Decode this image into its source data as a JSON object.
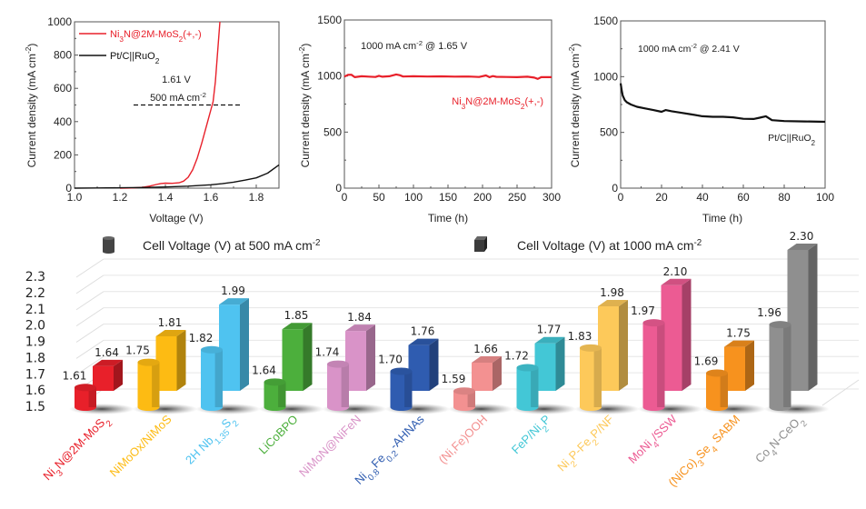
{
  "chart_data": [
    {
      "id": "polarization",
      "type": "line",
      "title": "",
      "xlabel": "Voltage (V)",
      "ylabel": "Current density (mA cm-2)",
      "xlim": [
        1.0,
        1.9
      ],
      "ylim": [
        0,
        1000
      ],
      "xticks": [
        1.0,
        1.2,
        1.4,
        1.6,
        1.8
      ],
      "xtick_labels": [
        "1.0",
        "1.2",
        "1.4",
        "1.6",
        "1.8"
      ],
      "yticks": [
        0,
        200,
        400,
        600,
        800,
        1000
      ],
      "ytick_labels": [
        "0",
        "200",
        "400",
        "600",
        "800",
        "1000"
      ],
      "legend_position": "top-left",
      "series": [
        {
          "name": "Ni3N@2M-MoS2(+,-)",
          "color": "#e8202a",
          "x": [
            1.2,
            1.25,
            1.3,
            1.33,
            1.36,
            1.38,
            1.4,
            1.43,
            1.46,
            1.48,
            1.5,
            1.52,
            1.54,
            1.56,
            1.58,
            1.6,
            1.61,
            1.62,
            1.63,
            1.64
          ],
          "y": [
            0,
            1,
            5,
            12,
            22,
            28,
            30,
            29,
            32,
            42,
            65,
            110,
            180,
            270,
            370,
            470,
            520,
            640,
            820,
            1000
          ]
        },
        {
          "name": "Pt/C||RuO2",
          "color": "#111111",
          "x": [
            1.0,
            1.1,
            1.2,
            1.3,
            1.4,
            1.5,
            1.6,
            1.65,
            1.7,
            1.75,
            1.8,
            1.85,
            1.9
          ],
          "y": [
            0,
            1,
            2,
            4,
            7,
            12,
            20,
            27,
            36,
            48,
            62,
            90,
            140
          ]
        }
      ],
      "annotations": {
        "voltage_label": "1.61 V",
        "current_label": "500 mA cm-2",
        "reference_line_y": 500,
        "reference_line_x_range": [
          1.26,
          1.73
        ]
      }
    },
    {
      "id": "stability-ni3n",
      "type": "line",
      "xlabel": "Time (h)",
      "ylabel": "Current density (mA cm-2)",
      "xlim": [
        0,
        300
      ],
      "ylim": [
        0,
        1500
      ],
      "xticks": [
        0,
        50,
        100,
        150,
        200,
        250,
        300
      ],
      "xtick_labels": [
        "0",
        "50",
        "100",
        "150",
        "200",
        "250",
        "300"
      ],
      "yticks": [
        0,
        500,
        1000,
        1500
      ],
      "ytick_labels": [
        "0",
        "500",
        "1000",
        "1500"
      ],
      "annotation": "1000 mA cm-2 @ 1.65 V",
      "series": [
        {
          "name": "Ni3N@2M-MoS2(+,-)",
          "color": "#e8202a",
          "x": [
            0,
            5,
            10,
            15,
            25,
            35,
            45,
            50,
            55,
            65,
            75,
            80,
            85,
            100,
            120,
            140,
            160,
            180,
            195,
            205,
            210,
            215,
            220,
            235,
            250,
            265,
            275,
            280,
            285,
            300
          ],
          "y": [
            995,
            1010,
            1012,
            990,
            998,
            995,
            992,
            1002,
            994,
            998,
            1014,
            1008,
            996,
            998,
            996,
            997,
            995,
            996,
            992,
            1005,
            990,
            1000,
            993,
            992,
            990,
            994,
            986,
            975,
            990,
            990
          ]
        }
      ]
    },
    {
      "id": "stability-ptc",
      "type": "line",
      "xlabel": "Time (h)",
      "ylabel": "Current density (mA cm-2)",
      "xlim": [
        0,
        100
      ],
      "ylim": [
        0,
        1500
      ],
      "xticks": [
        0,
        20,
        40,
        60,
        80,
        100
      ],
      "xtick_labels": [
        "0",
        "20",
        "40",
        "60",
        "80",
        "100"
      ],
      "yticks": [
        0,
        500,
        1000,
        1500
      ],
      "ytick_labels": [
        "0",
        "500",
        "1000",
        "1500"
      ],
      "annotation": "1000 mA cm-2 @ 2.41 V",
      "series": [
        {
          "name": "Pt/C||RuO2",
          "color": "#111111",
          "x": [
            0,
            0.5,
            1,
            2,
            3,
            5,
            8,
            12,
            16,
            20,
            22,
            25,
            30,
            35,
            40,
            45,
            50,
            55,
            60,
            65,
            68,
            71,
            74,
            80,
            90,
            100
          ],
          "y": [
            940,
            880,
            830,
            790,
            770,
            750,
            730,
            715,
            700,
            685,
            700,
            690,
            675,
            660,
            645,
            640,
            640,
            635,
            622,
            620,
            632,
            645,
            610,
            602,
            598,
            595
          ]
        }
      ],
      "legend_label": "Pt/C||RuO2"
    },
    {
      "id": "cell-voltage-comparison",
      "type": "bar",
      "title": "",
      "ylim": [
        1.5,
        2.3
      ],
      "yticks": [
        "2.3",
        "2.2",
        "2.1",
        "2.0",
        "1.9",
        "1.8",
        "1.7",
        "1.6",
        "1.5"
      ],
      "legend": [
        {
          "label": "Cell Voltage (V) at 500 mA cm-2",
          "shape": "cylinder",
          "color": "#444444"
        },
        {
          "label": "Cell Voltage (V) at 1000 mA cm-2",
          "shape": "box",
          "color": "#444444"
        }
      ],
      "categories": [
        "Ni3N@2M-MoS2",
        "NiMoOx/NiMoS",
        "2H Nb1.35S2",
        "LiCoBPO",
        "NiMoN@NiFeN",
        "Ni0.8Fe0.2-AHNAs",
        "(Ni,Fe)OOH",
        "FeP/Ni2P",
        "Ni2P-Fe2P/NF",
        "MoNi4/SSW",
        "(NiCo)3Se4 SABM",
        "Co4N-CeO2"
      ],
      "category_colors": [
        "#e8202a",
        "#fdbb13",
        "#4fc3f0",
        "#4caf3c",
        "#d993c8",
        "#2f5cb0",
        "#f39191",
        "#43c7d6",
        "#fdc95a",
        "#ec5b93",
        "#f7921e",
        "#8f8f8f"
      ],
      "series": [
        {
          "name": "Cell Voltage (V) at 500 mA cm-2",
          "values": [
            1.61,
            1.75,
            1.82,
            1.64,
            1.74,
            1.7,
            1.59,
            1.72,
            1.83,
            1.97,
            1.69,
            1.96
          ],
          "labels": [
            "1.61",
            "1.75",
            "1.82",
            "1.64",
            "1.74",
            "1.70",
            "1.59",
            "1.72",
            "1.83",
            "1.97",
            "1.69",
            "1.96"
          ]
        },
        {
          "name": "Cell Voltage (V) at 1000 mA cm-2",
          "values": [
            1.64,
            1.81,
            1.99,
            1.85,
            1.84,
            1.76,
            1.66,
            1.77,
            1.98,
            2.1,
            1.75,
            2.3
          ],
          "labels": [
            "1.64",
            "1.81",
            "1.99",
            "1.85",
            "1.84",
            "1.76",
            "1.66",
            "1.77",
            "1.98",
            "2.10",
            "1.75",
            "2.30"
          ]
        }
      ]
    }
  ]
}
